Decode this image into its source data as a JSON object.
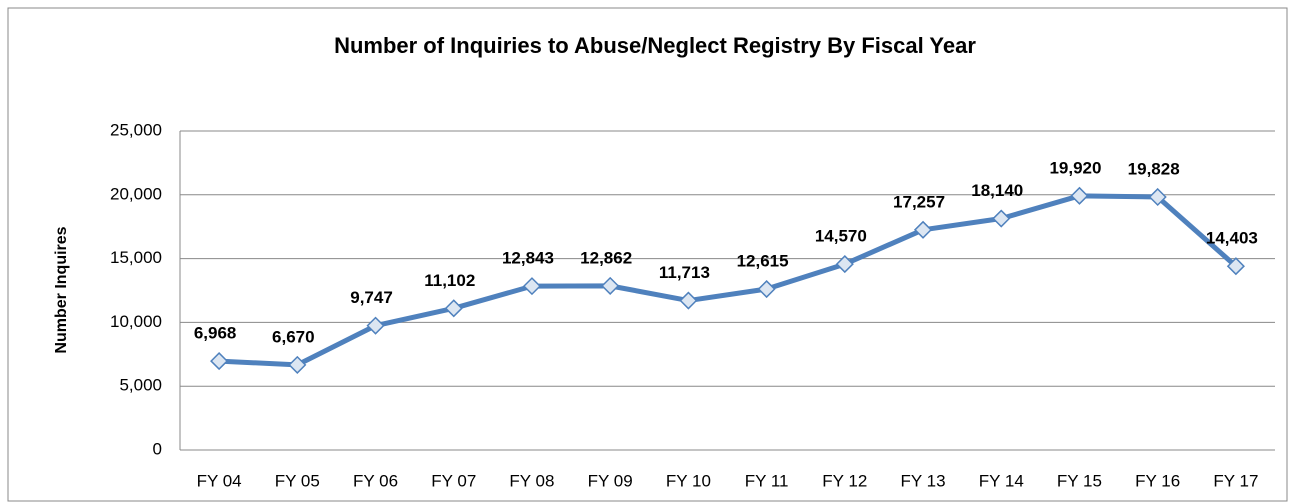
{
  "chart_data": {
    "type": "line",
    "title": "Number of Inquiries to Abuse/Neglect Registry By Fiscal Year",
    "y_label": "Number Inquires",
    "categories": [
      "FY 04",
      "FY 05",
      "FY 06",
      "FY 07",
      "FY 08",
      "FY 09",
      "FY 10",
      "FY 11",
      "FY 12",
      "FY 13",
      "FY 14",
      "FY 15",
      "FY 16",
      "FY 17"
    ],
    "values": [
      6968,
      6670,
      9747,
      11102,
      12843,
      12862,
      11713,
      12615,
      14570,
      17257,
      18140,
      19920,
      19828,
      14403
    ],
    "value_labels": [
      "6,968",
      "6,670",
      "9,747",
      "11,102",
      "12,843",
      "12,862",
      "11,713",
      "12,615",
      "14,570",
      "17,257",
      "18,140",
      "19,920",
      "19,828",
      "14,403"
    ],
    "color": "#4f81bd",
    "ylim": [
      0,
      25000
    ],
    "yticks": [
      0,
      {
        "value": 5000,
        "label": "5,000"
      },
      {
        "value": 10000,
        "label": "10,000"
      },
      {
        "value": 15000,
        "label": "15,000"
      },
      {
        "value": 20000,
        "label": "20,000"
      },
      {
        "value": 25000,
        "label": "25,000"
      }
    ],
    "grid": true
  }
}
